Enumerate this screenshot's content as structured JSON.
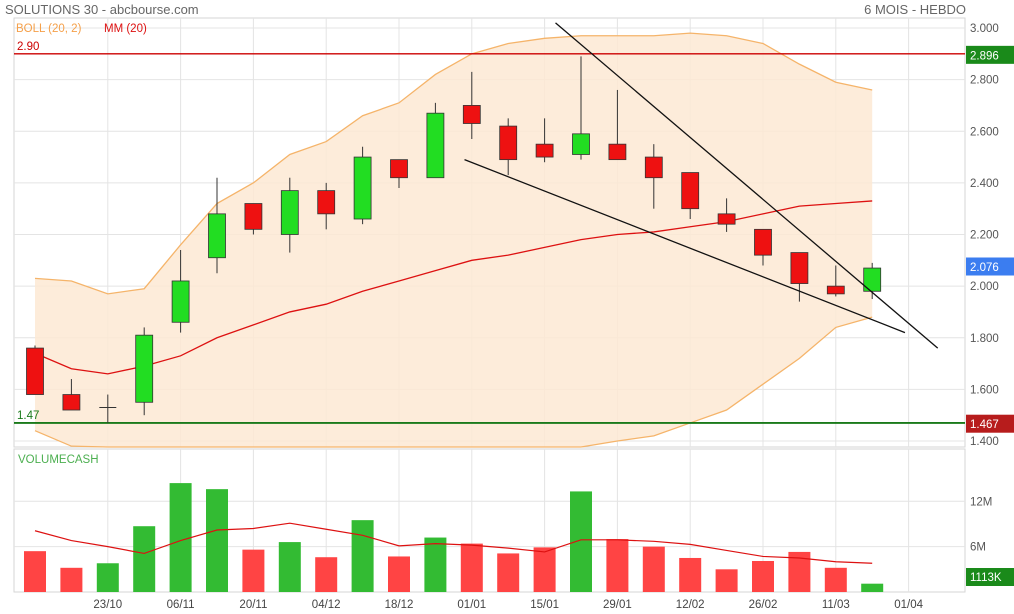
{
  "header": {
    "title": "SOLUTIONS 30 - abcbourse.com",
    "period": "6 MOIS - HEBDO"
  },
  "legend": {
    "boll": "BOLL (20, 2)",
    "mm": "MM (20)",
    "volume": "VOLUMECASH"
  },
  "colors": {
    "up": "#22dd22",
    "down": "#ee1111",
    "boll_fill": "#fde9d3",
    "boll_line": "#f5b46a",
    "ma_line": "#dd1111",
    "resistance": "#cc0000",
    "support": "#1a7a1a",
    "last_badge": "#3b7df0",
    "volume_up": "#33bb33",
    "volume_down": "#ff4444"
  },
  "chart_data": [
    {
      "type": "candlestick",
      "title": "",
      "ylim": [
        1.4,
        3.0
      ],
      "y_ticks": [
        "3.000",
        "2.800",
        "2.600",
        "2.400",
        "2.200",
        "2.000",
        "1.800",
        "1.600",
        "1.400"
      ],
      "x_labels": [
        "23/10",
        "06/11",
        "20/11",
        "04/12",
        "18/12",
        "01/01",
        "15/01",
        "29/01",
        "12/02",
        "26/02",
        "11/03",
        "01/04"
      ],
      "candles": [
        {
          "o": 1.76,
          "h": 1.77,
          "l": 1.58,
          "c": 1.58
        },
        {
          "o": 1.58,
          "h": 1.64,
          "l": 1.52,
          "c": 1.52
        },
        {
          "o": 1.53,
          "h": 1.58,
          "l": 1.47,
          "c": 1.53
        },
        {
          "o": 1.55,
          "h": 1.84,
          "l": 1.5,
          "c": 1.81
        },
        {
          "o": 1.86,
          "h": 2.14,
          "l": 1.82,
          "c": 2.02
        },
        {
          "o": 2.11,
          "h": 2.42,
          "l": 2.05,
          "c": 2.28
        },
        {
          "o": 2.32,
          "h": 2.32,
          "l": 2.2,
          "c": 2.22
        },
        {
          "o": 2.2,
          "h": 2.42,
          "l": 2.13,
          "c": 2.37
        },
        {
          "o": 2.37,
          "h": 2.4,
          "l": 2.22,
          "c": 2.28
        },
        {
          "o": 2.26,
          "h": 2.54,
          "l": 2.24,
          "c": 2.5
        },
        {
          "o": 2.49,
          "h": 2.49,
          "l": 2.38,
          "c": 2.42
        },
        {
          "o": 2.42,
          "h": 2.71,
          "l": 2.42,
          "c": 2.67
        },
        {
          "o": 2.7,
          "h": 2.83,
          "l": 2.57,
          "c": 2.63
        },
        {
          "o": 2.62,
          "h": 2.65,
          "l": 2.43,
          "c": 2.49
        },
        {
          "o": 2.55,
          "h": 2.65,
          "l": 2.48,
          "c": 2.5
        },
        {
          "o": 2.51,
          "h": 2.89,
          "l": 2.49,
          "c": 2.59
        },
        {
          "o": 2.55,
          "h": 2.76,
          "l": 2.49,
          "c": 2.49
        },
        {
          "o": 2.5,
          "h": 2.55,
          "l": 2.3,
          "c": 2.42
        },
        {
          "o": 2.44,
          "h": 2.44,
          "l": 2.26,
          "c": 2.3
        },
        {
          "o": 2.28,
          "h": 2.34,
          "l": 2.21,
          "c": 2.24
        },
        {
          "o": 2.22,
          "h": 2.22,
          "l": 2.08,
          "c": 2.12
        },
        {
          "o": 2.13,
          "h": 2.13,
          "l": 1.94,
          "c": 2.01
        },
        {
          "o": 2.0,
          "h": 2.08,
          "l": 1.96,
          "c": 1.97
        },
        {
          "o": 1.98,
          "h": 2.09,
          "l": 1.95,
          "c": 2.07
        }
      ],
      "boll_upper": [
        2.03,
        2.02,
        1.97,
        1.99,
        2.16,
        2.32,
        2.4,
        2.51,
        2.56,
        2.66,
        2.71,
        2.82,
        2.9,
        2.94,
        2.96,
        2.97,
        2.97,
        2.97,
        2.98,
        2.97,
        2.94,
        2.86,
        2.79,
        2.76
      ],
      "boll_lower": [
        1.44,
        1.38,
        1.3,
        1.26,
        1.23,
        1.2,
        1.22,
        1.23,
        1.28,
        1.26,
        1.28,
        1.3,
        1.29,
        1.34,
        1.36,
        1.37,
        1.4,
        1.42,
        1.47,
        1.52,
        1.62,
        1.72,
        1.84,
        1.88
      ],
      "ma": [
        1.74,
        1.68,
        1.66,
        1.69,
        1.73,
        1.8,
        1.85,
        1.9,
        1.93,
        1.98,
        2.02,
        2.06,
        2.1,
        2.12,
        2.15,
        2.18,
        2.2,
        2.21,
        2.23,
        2.25,
        2.28,
        2.31,
        2.32,
        2.33
      ],
      "resistance_level": 2.9,
      "resistance_label": "2.90",
      "support_level": 1.47,
      "support_label": "1.47",
      "badge_resistance": "2.896",
      "badge_last": "2.076",
      "badge_support": "1.467",
      "trendlines": [
        {
          "x1": 14.3,
          "y1": 3.02,
          "x2": 24.8,
          "y2": 1.76
        },
        {
          "x1": 11.8,
          "y1": 2.49,
          "x2": 23.9,
          "y2": 1.82
        }
      ]
    },
    {
      "type": "bar",
      "title": "",
      "ylim": [
        0,
        16
      ],
      "y_ticks": [
        "12M",
        "6M"
      ],
      "values": [
        5.4,
        3.2,
        3.8,
        8.7,
        14.4,
        13.6,
        5.6,
        6.6,
        4.6,
        9.5,
        4.7,
        7.2,
        6.4,
        5.1,
        5.9,
        13.3,
        7.0,
        6.0,
        4.5,
        3.0,
        4.1,
        5.3,
        3.2,
        1.1
      ],
      "up": [
        false,
        false,
        true,
        true,
        true,
        true,
        false,
        true,
        false,
        true,
        false,
        true,
        false,
        false,
        false,
        true,
        false,
        false,
        false,
        false,
        false,
        false,
        false,
        true
      ],
      "ma": [
        8.1,
        6.8,
        6.0,
        5.1,
        6.8,
        8.2,
        8.4,
        9.1,
        8.3,
        7.5,
        6.1,
        6.4,
        6.2,
        5.8,
        5.3,
        6.9,
        6.9,
        6.7,
        6.3,
        5.5,
        4.7,
        4.5,
        4.0,
        3.8
      ],
      "badge_last": "1113K"
    }
  ]
}
